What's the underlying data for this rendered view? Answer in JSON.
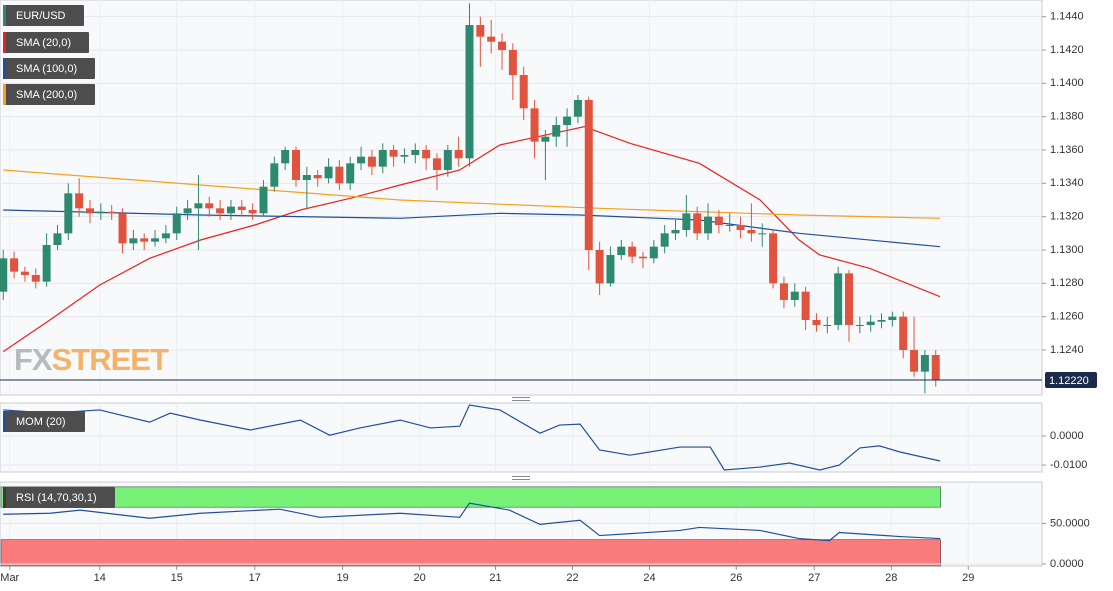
{
  "chart_data": {
    "type": "candlestick",
    "symbol": "EUR/USD",
    "watermark": {
      "first": "FX",
      "second": "STREET"
    },
    "up_color": "#2e8a6e",
    "down_color": "#e0533f",
    "xlim": [
      -0.3,
      95.8
    ],
    "ylim": [
      1.1213,
      1.145
    ],
    "yticks": [
      {
        "value": 1.124,
        "label": "1.1240"
      },
      {
        "value": 1.126,
        "label": "1.1260"
      },
      {
        "value": 1.128,
        "label": "1.1280"
      },
      {
        "value": 1.13,
        "label": "1.1300"
      },
      {
        "value": 1.132,
        "label": "1.1320"
      },
      {
        "value": 1.134,
        "label": "1.1340"
      },
      {
        "value": 1.136,
        "label": "1.1360"
      },
      {
        "value": 1.138,
        "label": "1.1380"
      },
      {
        "value": 1.14,
        "label": "1.1400"
      },
      {
        "value": 1.142,
        "label": "1.1420"
      },
      {
        "value": 1.144,
        "label": "1.1440"
      }
    ],
    "xticks": [
      {
        "value": 0.6,
        "label": "Mar"
      },
      {
        "value": 8.9,
        "label": "14"
      },
      {
        "value": 16,
        "label": "15"
      },
      {
        "value": 23.2,
        "label": "17"
      },
      {
        "value": 31.3,
        "label": "19"
      },
      {
        "value": 38.4,
        "label": "20"
      },
      {
        "value": 45.4,
        "label": "21"
      },
      {
        "value": 52.5,
        "label": "22"
      },
      {
        "value": 59.6,
        "label": "24"
      },
      {
        "value": 67.6,
        "label": "26"
      },
      {
        "value": 74.8,
        "label": "27"
      },
      {
        "value": 81.9,
        "label": "28"
      },
      {
        "value": 89,
        "label": "29"
      }
    ],
    "last_price": {
      "value": 1.1222,
      "label": "1.12220"
    },
    "open": [
      1.1275,
      1.1295,
      1.1287,
      1.1285,
      1.1281,
      1.1303,
      1.131,
      1.1334,
      1.1325,
      1.1322,
      1.1323,
      1.1322,
      1.1304,
      1.1307,
      1.1305,
      1.1307,
      1.131,
      1.1322,
      1.1325,
      1.1328,
      1.1325,
      1.1322,
      1.1326,
      1.1324,
      1.1322,
      1.1338,
      1.1352,
      1.136,
      1.1342,
      1.1345,
      1.1343,
      1.135,
      1.134,
      1.1352,
      1.1356,
      1.135,
      1.136,
      1.1356,
      1.1357,
      1.136,
      1.1355,
      1.1348,
      1.136,
      1.1355,
      1.1435,
      1.1428,
      1.1425,
      1.142,
      1.1405,
      1.1385,
      1.1365,
      1.1368,
      1.1375,
      1.138,
      1.139,
      1.13,
      1.128,
      1.1297,
      1.1302,
      1.1296,
      1.1295,
      1.1302,
      1.131,
      1.1312,
      1.1322,
      1.131,
      1.132,
      1.1315,
      1.1315,
      1.1312,
      1.131,
      1.131,
      1.128,
      1.127,
      1.1275,
      1.1258,
      1.1255,
      1.1255,
      1.1286,
      1.1255,
      1.1255,
      1.1257,
      1.1258,
      1.126,
      1.124,
      1.1227,
      1.1237
    ],
    "high": [
      1.13,
      1.1299,
      1.129,
      1.1289,
      1.131,
      1.1315,
      1.134,
      1.1343,
      1.133,
      1.1328,
      1.1327,
      1.1325,
      1.1312,
      1.131,
      1.1312,
      1.1315,
      1.1326,
      1.133,
      1.1345,
      1.1332,
      1.133,
      1.133,
      1.133,
      1.1328,
      1.1342,
      1.1356,
      1.1362,
      1.1362,
      1.135,
      1.1348,
      1.1355,
      1.1354,
      1.1356,
      1.1362,
      1.136,
      1.1364,
      1.1363,
      1.1361,
      1.1364,
      1.1363,
      1.1358,
      1.1363,
      1.1368,
      1.1448,
      1.144,
      1.1438,
      1.143,
      1.1424,
      1.141,
      1.139,
      1.1372,
      1.138,
      1.1385,
      1.1393,
      1.1392,
      1.1305,
      1.1302,
      1.1306,
      1.1305,
      1.1299,
      1.1306,
      1.1315,
      1.1318,
      1.1333,
      1.1326,
      1.1328,
      1.1324,
      1.1322,
      1.132,
      1.1328,
      1.1316,
      1.1312,
      1.1284,
      1.128,
      1.1278,
      1.1262,
      1.126,
      1.129,
      1.1288,
      1.126,
      1.1261,
      1.1262,
      1.1263,
      1.1263,
      1.126,
      1.124,
      1.124
    ],
    "low": [
      1.127,
      1.1283,
      1.1281,
      1.1277,
      1.1278,
      1.13,
      1.1306,
      1.132,
      1.1316,
      1.1318,
      1.1318,
      1.1298,
      1.13,
      1.13,
      1.1302,
      1.1304,
      1.1306,
      1.1318,
      1.13,
      1.132,
      1.1318,
      1.1318,
      1.132,
      1.1318,
      1.132,
      1.1335,
      1.1348,
      1.1338,
      1.1325,
      1.1338,
      1.134,
      1.1336,
      1.1336,
      1.1348,
      1.1345,
      1.1346,
      1.135,
      1.1352,
      1.1352,
      1.1348,
      1.1336,
      1.1344,
      1.135,
      1.135,
      1.141,
      1.1418,
      1.1408,
      1.139,
      1.1378,
      1.1355,
      1.1342,
      1.1362,
      1.1362,
      1.1376,
      1.1288,
      1.1273,
      1.1278,
      1.1294,
      1.1292,
      1.1289,
      1.1292,
      1.1298,
      1.1306,
      1.1308,
      1.1306,
      1.1306,
      1.131,
      1.1311,
      1.1307,
      1.1305,
      1.1302,
      1.1277,
      1.1265,
      1.1266,
      1.1252,
      1.1251,
      1.125,
      1.1252,
      1.1245,
      1.125,
      1.1251,
      1.1253,
      1.1254,
      1.1235,
      1.1224,
      1.1214,
      1.1218
    ],
    "close": [
      1.1295,
      1.1287,
      1.1285,
      1.1281,
      1.1303,
      1.131,
      1.1334,
      1.1325,
      1.1322,
      1.1323,
      1.1322,
      1.1304,
      1.1307,
      1.1305,
      1.1307,
      1.131,
      1.1322,
      1.1325,
      1.1328,
      1.1325,
      1.1322,
      1.1326,
      1.1324,
      1.1322,
      1.1338,
      1.1352,
      1.136,
      1.1342,
      1.1345,
      1.1343,
      1.135,
      1.134,
      1.1352,
      1.1356,
      1.135,
      1.136,
      1.1356,
      1.1357,
      1.136,
      1.1355,
      1.1348,
      1.136,
      1.1355,
      1.1435,
      1.1428,
      1.1425,
      1.142,
      1.1405,
      1.1385,
      1.1365,
      1.1368,
      1.1375,
      1.138,
      1.139,
      1.13,
      1.128,
      1.1297,
      1.1302,
      1.1296,
      1.1295,
      1.1302,
      1.131,
      1.1312,
      1.1322,
      1.131,
      1.132,
      1.1315,
      1.1315,
      1.1312,
      1.131,
      1.131,
      1.128,
      1.127,
      1.1275,
      1.1258,
      1.1255,
      1.1255,
      1.1286,
      1.1255,
      1.1255,
      1.1257,
      1.1258,
      1.126,
      1.124,
      1.1227,
      1.1237,
      1.1222
    ],
    "overlays": [
      {
        "name": "SMA (20,0)",
        "color": "#e8231f",
        "x": [
          0,
          4.3,
          8.9,
          13.5,
          18.2,
          23.2,
          27.4,
          32,
          36.6,
          42.1,
          45.8,
          48.6,
          53.6,
          57.8,
          64.2,
          69.8,
          73.4,
          75.3,
          79.9,
          86.4
        ],
        "values": [
          1.1239,
          1.1258,
          1.1279,
          1.1295,
          1.1306,
          1.1315,
          1.1324,
          1.1331,
          1.1339,
          1.1348,
          1.1363,
          1.1367,
          1.1374,
          1.1364,
          1.1352,
          1.133,
          1.1306,
          1.1297,
          1.1289,
          1.1272
        ]
      },
      {
        "name": "SMA (100,0)",
        "color": "#1f4f9e",
        "x": [
          0,
          18.2,
          36.6,
          45.8,
          53.2,
          64.2,
          73.4,
          86.4
        ],
        "values": [
          1.1324,
          1.1321,
          1.1319,
          1.1322,
          1.1321,
          1.1318,
          1.131,
          1.1302
        ]
      },
      {
        "name": "SMA (200,0)",
        "color": "#f5a020",
        "x": [
          0,
          18.2,
          36.6,
          55,
          73.4,
          86.4
        ],
        "values": [
          1.1348,
          1.1339,
          1.133,
          1.1325,
          1.1321,
          1.1319
        ]
      }
    ],
    "panels": [
      {
        "type": "line",
        "name": "MOM (20)",
        "color": "#1f4f9e",
        "ylim": [
          -0.0124,
          0.0114
        ],
        "yticks": [
          {
            "value": 0,
            "label": "0.0000"
          },
          {
            "value": -0.01,
            "label": "-0.0100"
          }
        ],
        "x": [
          0,
          4.3,
          8.9,
          13.5,
          15.4,
          18.2,
          22.8,
          27.4,
          30.1,
          32.9,
          36.6,
          39.4,
          42.1,
          43,
          45.8,
          49.5,
          51.3,
          53.2,
          55,
          57.8,
          62.4,
          65.2,
          66.5,
          69.8,
          72.5,
          75.3,
          77.1,
          79,
          80.8,
          82.7,
          86.4
        ],
        "values": [
          0.009,
          0.0079,
          0.009,
          0.0048,
          0.0079,
          0.0055,
          0.0021,
          0.0055,
          0.0003,
          0.0028,
          0.0055,
          0.0028,
          0.0034,
          0.0107,
          0.009,
          0.001,
          0.0038,
          0.0041,
          -0.0048,
          -0.0066,
          -0.0038,
          -0.0038,
          -0.0117,
          -0.0107,
          -0.0093,
          -0.0117,
          -0.01,
          -0.0041,
          -0.0034,
          -0.0055,
          -0.0086
        ]
      },
      {
        "type": "rsi",
        "name": "RSI (14,70,30,1)",
        "color": "#1f4f9e",
        "ylim": [
          -2.5,
          101
        ],
        "overbought": 70,
        "oversold": 30,
        "overbought_color": "#77f177",
        "oversold_color": "#fa7b7b",
        "yticks": [
          {
            "value": 50,
            "label": "50.0000"
          },
          {
            "value": 0,
            "label": "0.0000"
          }
        ],
        "x": [
          0,
          4.3,
          7.1,
          13.5,
          18.2,
          25.5,
          29.2,
          36.6,
          42.1,
          43,
          46.7,
          49.5,
          53.2,
          55,
          62.4,
          64.2,
          69.8,
          73.4,
          76.2,
          77.1,
          82.7,
          86.4
        ],
        "values": [
          61.3,
          62.5,
          66.3,
          56.3,
          62.5,
          67.5,
          57.5,
          62.5,
          57.5,
          75,
          66.3,
          48.8,
          53.8,
          35,
          41.3,
          45,
          41.3,
          31.3,
          28.8,
          38.8,
          33.8,
          31.3
        ]
      }
    ]
  }
}
